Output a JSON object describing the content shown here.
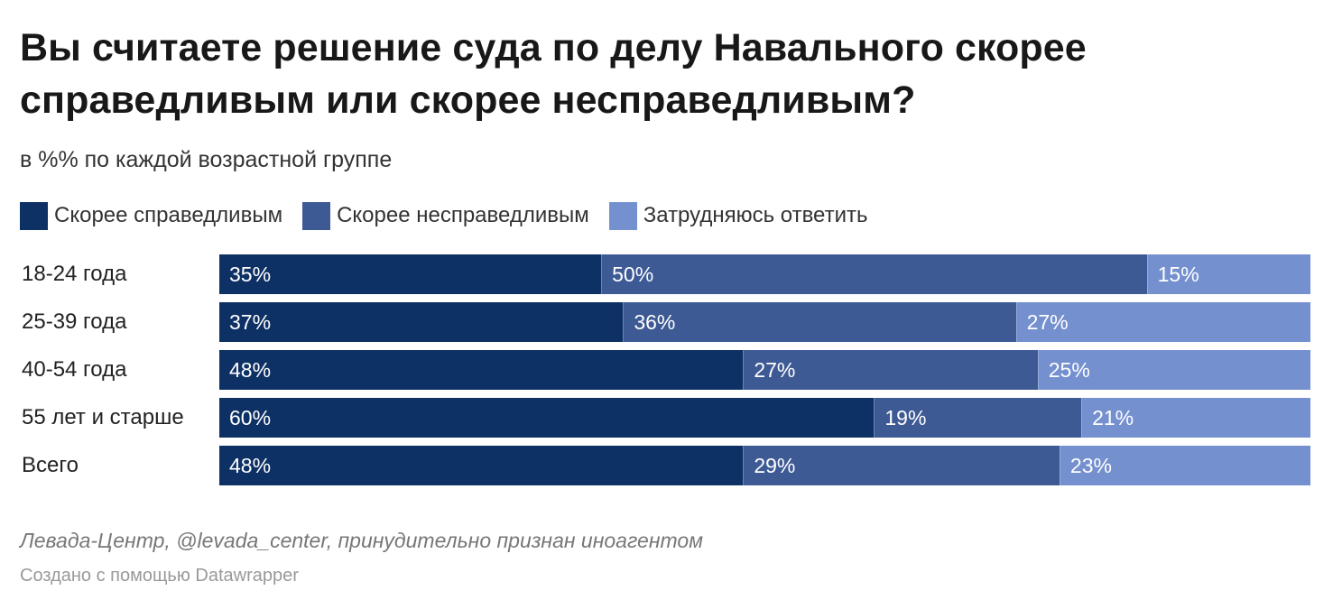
{
  "title": "Вы считаете решение суда по делу Навального скорее справедливым или скорее несправедливым?",
  "subtitle": "в %% по каждой возрастной группе",
  "colors": {
    "fair": "#0e3165",
    "unfair": "#3e5a95",
    "undecided": "#7590cf"
  },
  "chart_data": {
    "type": "bar",
    "orientation": "horizontal",
    "stacked": true,
    "normalized_to": 100,
    "title": "Вы считаете решение суда по делу Навального скорее справедливым или скорее несправедливым?",
    "subtitle": "в %% по каждой возрастной группе",
    "legend_position": "top-left",
    "categories": [
      "18-24 года",
      "25-39 года",
      "40-54 года",
      "55 лет и старше",
      "Всего"
    ],
    "series": [
      {
        "name": "Скорее справедливым",
        "key": "fair",
        "values": [
          35,
          37,
          48,
          60,
          48
        ],
        "labels": [
          "35%",
          "37%",
          "48%",
          "60%",
          "48%"
        ]
      },
      {
        "name": "Скорее несправедливым",
        "key": "unfair",
        "values": [
          50,
          36,
          27,
          19,
          29
        ],
        "labels": [
          "50%",
          "36%",
          "27%",
          "19%",
          "29%"
        ]
      },
      {
        "name": "Затрудняюсь ответить",
        "key": "undecided",
        "values": [
          15,
          27,
          25,
          21,
          23
        ],
        "labels": [
          "15%",
          "27%",
          "25%",
          "21%",
          "23%"
        ]
      }
    ]
  },
  "source": "Левада-Центр, @levada_center, принудительно признан иноагентом",
  "credit": "Создано с помощью Datawrapper"
}
